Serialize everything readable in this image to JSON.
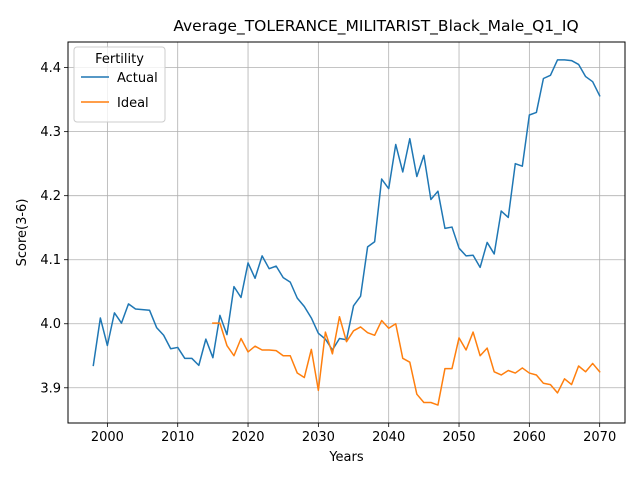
{
  "chart_data": {
    "type": "line",
    "title": "Average_TOLERANCE_MILITARIST_Black_Male_Q1_IQ",
    "xlabel": "Years",
    "ylabel": "Score(3-6)",
    "xlim": [
      1994.4,
      2073.6
    ],
    "ylim": [
      3.845,
      4.44
    ],
    "xticks": [
      2000,
      2010,
      2020,
      2030,
      2040,
      2050,
      2060,
      2070
    ],
    "xtick_labels": [
      "2000",
      "2010",
      "2020",
      "2030",
      "2040",
      "2050",
      "2060",
      "2070"
    ],
    "yticks": [
      3.9,
      4.0,
      4.1,
      4.2,
      4.3,
      4.4
    ],
    "ytick_labels": [
      "3.9",
      "4.0",
      "4.1",
      "4.2",
      "4.3",
      "4.4"
    ],
    "grid": true,
    "legend": {
      "title": "Fertility",
      "position": "top-left"
    },
    "series": [
      {
        "name": "Actual",
        "color": "#1f77b4",
        "x": [
          1998,
          1999,
          2000,
          2001,
          2002,
          2003,
          2004,
          2005,
          2006,
          2007,
          2008,
          2009,
          2010,
          2011,
          2012,
          2013,
          2014,
          2015,
          2016,
          2017,
          2018,
          2019,
          2020,
          2021,
          2022,
          2023,
          2024,
          2025,
          2026,
          2027,
          2028,
          2029,
          2030,
          2031,
          2032,
          2033,
          2034,
          2035,
          2036,
          2037,
          2038,
          2039,
          2040,
          2041,
          2042,
          2043,
          2044,
          2045,
          2046,
          2047,
          2048,
          2049,
          2050,
          2051,
          2052,
          2053,
          2054,
          2055,
          2056,
          2057,
          2058,
          2059,
          2060,
          2061,
          2062,
          2063,
          2064,
          2065,
          2066,
          2067,
          2068,
          2069,
          2070
        ],
        "values": [
          3.935,
          4.009,
          3.966,
          4.017,
          4.001,
          4.031,
          4.023,
          4.022,
          4.021,
          3.994,
          3.982,
          3.961,
          3.963,
          3.946,
          3.946,
          3.935,
          3.976,
          3.947,
          4.013,
          3.983,
          4.058,
          4.041,
          4.095,
          4.071,
          4.106,
          4.086,
          4.09,
          4.072,
          4.065,
          4.04,
          4.027,
          4.009,
          3.985,
          3.976,
          3.959,
          3.977,
          3.975,
          4.028,
          4.043,
          4.12,
          4.128,
          4.226,
          4.211,
          4.28,
          4.237,
          4.289,
          4.23,
          4.263,
          4.194,
          4.207,
          4.149,
          4.151,
          4.118,
          4.106,
          4.107,
          4.088,
          4.127,
          4.109,
          4.176,
          4.166,
          4.25,
          4.246,
          4.326,
          4.33,
          4.383,
          4.388,
          4.412,
          4.412,
          4.411,
          4.405,
          4.386,
          4.378,
          4.356
        ]
      },
      {
        "name": "Ideal",
        "color": "#ff7f0e",
        "x": [
          2015,
          2016,
          2017,
          2018,
          2019,
          2020,
          2021,
          2022,
          2023,
          2024,
          2025,
          2026,
          2027,
          2028,
          2029,
          2030,
          2031,
          2032,
          2033,
          2034,
          2035,
          2036,
          2037,
          2038,
          2039,
          2040,
          2041,
          2042,
          2043,
          2044,
          2045,
          2046,
          2047,
          2048,
          2049,
          2050,
          2051,
          2052,
          2053,
          2054,
          2055,
          2056,
          2057,
          2058,
          2059,
          2060,
          2061,
          2062,
          2063,
          2064,
          2065,
          2066,
          2067,
          2068,
          2069,
          2070
        ],
        "values": [
          4.001,
          4.001,
          3.966,
          3.95,
          3.977,
          3.956,
          3.965,
          3.959,
          3.959,
          3.958,
          3.95,
          3.95,
          3.923,
          3.916,
          3.96,
          3.896,
          3.987,
          3.953,
          4.011,
          3.972,
          3.989,
          3.995,
          3.986,
          3.982,
          4.005,
          3.993,
          4.0,
          3.946,
          3.94,
          3.89,
          3.877,
          3.877,
          3.873,
          3.93,
          3.93,
          3.978,
          3.959,
          3.987,
          3.95,
          3.962,
          3.925,
          3.92,
          3.927,
          3.923,
          3.931,
          3.923,
          3.92,
          3.907,
          3.905,
          3.892,
          3.914,
          3.905,
          3.934,
          3.925,
          3.938,
          3.925
        ]
      }
    ]
  }
}
